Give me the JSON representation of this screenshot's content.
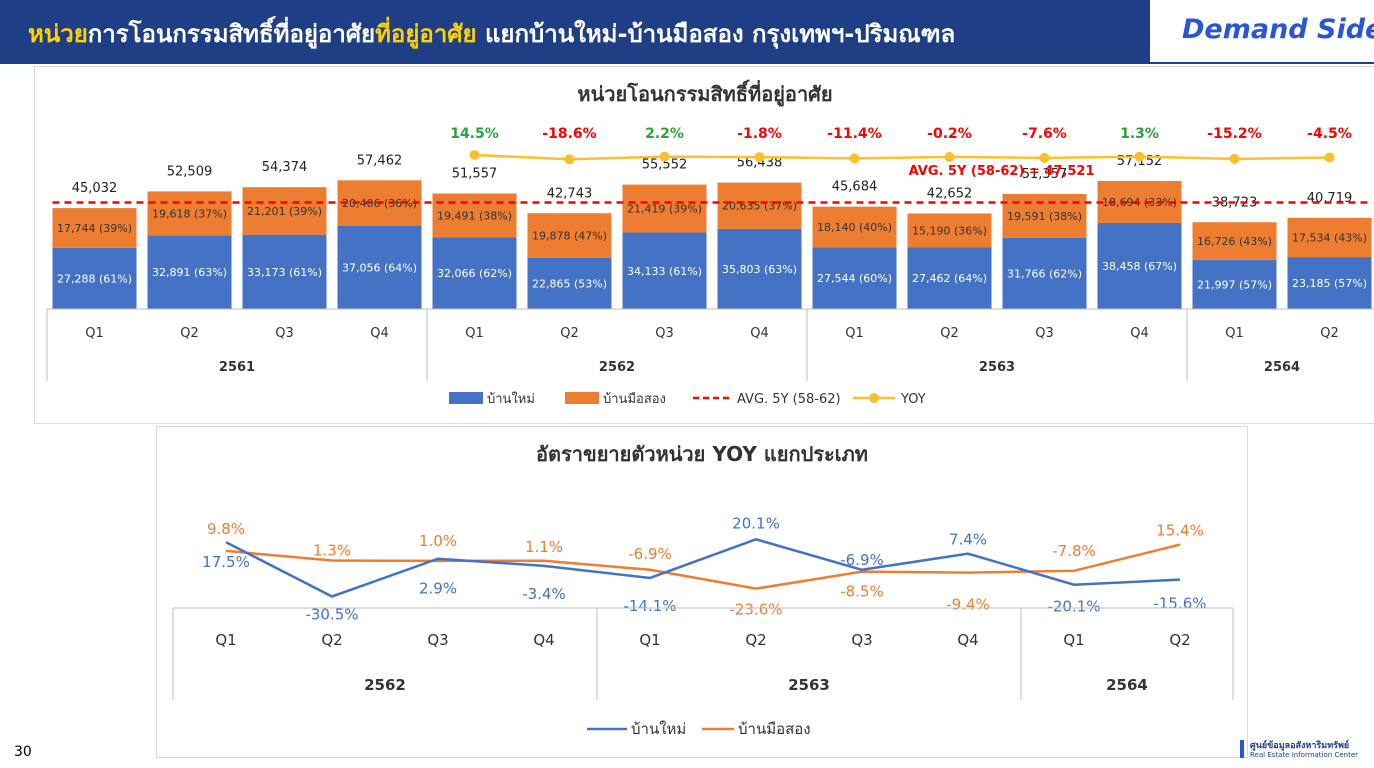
{
  "header": {
    "title_highlight": "หน่วย",
    "title_mid": "การโอนกรรมสิทธิ์ที่อยู่อาศัย",
    "title_highlight2": "ที่อยู่อาศัย",
    "title_rest": " แยกบ้านใหม่-บ้านมือสอง กรุงเทพฯ-ปริมณฑล",
    "side_label": "Demand Side"
  },
  "page_number": "30",
  "logo": {
    "line1": "ศูนย์ข้อมูลอสังหาริมทรัพย์",
    "line2": "Real Estate Information Center"
  },
  "colors": {
    "header_bg": "#1e3f86",
    "highlight": "#ffd200",
    "new_house": "#4472c4",
    "second_hand": "#ed7d31",
    "avg_line": "#ff0000",
    "yoy_line": "#fcc02e",
    "yoy_positive": "#2aa33b",
    "yoy_negative": "#ff0000"
  },
  "chart_data": [
    {
      "type": "bar",
      "stacked": true,
      "title": "หน่วยโอนกรรมสิทธิ์ที่อยู่อาศัย",
      "categories": [
        "Q1",
        "Q2",
        "Q3",
        "Q4",
        "Q1",
        "Q2",
        "Q3",
        "Q4",
        "Q1",
        "Q2",
        "Q3",
        "Q4",
        "Q1",
        "Q2"
      ],
      "year_groups": [
        {
          "label": "2561",
          "count": 4
        },
        {
          "label": "2562",
          "count": 4
        },
        {
          "label": "2563",
          "count": 4
        },
        {
          "label": "2564",
          "count": 2
        }
      ],
      "series": [
        {
          "name": "บ้านใหม่",
          "values": [
            27288,
            32891,
            33173,
            37056,
            32066,
            22865,
            34133,
            35803,
            27544,
            27462,
            31766,
            38458,
            21997,
            23185
          ],
          "labels": [
            "27,288 (61%)",
            "32,891 (63%)",
            "33,173 (61%)",
            "37,056 (64%)",
            "32,066 (62%)",
            "22,865 (53%)",
            "34,133 (61%)",
            "35,803 (63%)",
            "27,544 (60%)",
            "27,462 (64%)",
            "31,766 (62%)",
            "38,458 (67%)",
            "21,997 (57%)",
            "23,185 (57%)"
          ]
        },
        {
          "name": "บ้านมือสอง",
          "values": [
            17744,
            19618,
            21201,
            20406,
            19491,
            19878,
            21419,
            20635,
            18140,
            15190,
            19591,
            18694,
            16726,
            17534
          ],
          "labels": [
            "17,744 (39%)",
            "19,618 (37%)",
            "21,201 (39%)",
            "20,406 (36%)",
            "19,491 (38%)",
            "19,878 (47%)",
            "21,419 (39%)",
            "20,635 (37%)",
            "18,140 (40%)",
            "15,190 (36%)",
            "19,591 (38%)",
            "18,694 (33%)",
            "16,726 (43%)",
            "17,534 (43%)"
          ]
        }
      ],
      "totals": [
        "45,032",
        "52,509",
        "54,374",
        "57,462",
        "51,557",
        "42,743",
        "55,552",
        "56,438",
        "45,684",
        "42,652",
        "51,357",
        "57,152",
        "38,723",
        "40,719"
      ],
      "total_values": [
        45032,
        52509,
        54374,
        57462,
        51557,
        42743,
        55552,
        56438,
        45684,
        42652,
        51357,
        57152,
        38723,
        40719
      ],
      "avg_line": {
        "name": "AVG. 5Y (58-62)",
        "label": "AVG. 5Y (58-62) =  47,521",
        "value": 47521
      },
      "yoy": {
        "name": "YOY",
        "start_index": 4,
        "values": [
          14.5,
          -18.6,
          2.2,
          -1.8,
          -11.4,
          -0.2,
          -7.6,
          1.3,
          -15.2,
          -4.5
        ],
        "labels": [
          "14.5%",
          "-18.6%",
          "2.2%",
          "-1.8%",
          "-11.4%",
          "-0.2%",
          "-7.6%",
          "1.3%",
          "-15.2%",
          "-4.5%"
        ]
      },
      "legend": [
        "บ้านใหม่",
        "บ้านมือสอง",
        "AVG. 5Y (58-62)",
        "YOY"
      ],
      "legend_position": "bottom",
      "ylim": [
        0,
        66000
      ]
    },
    {
      "type": "line",
      "title": "อัตราขยายตัวหน่วย YOY แยกประเภท",
      "categories": [
        "Q1",
        "Q2",
        "Q3",
        "Q4",
        "Q1",
        "Q2",
        "Q3",
        "Q4",
        "Q1",
        "Q2"
      ],
      "year_groups": [
        {
          "label": "2562",
          "count": 4
        },
        {
          "label": "2563",
          "count": 4
        },
        {
          "label": "2564",
          "count": 2
        }
      ],
      "series": [
        {
          "name": "บ้านใหม่",
          "values": [
            17.5,
            -30.5,
            2.9,
            -3.4,
            -14.1,
            20.1,
            -6.9,
            7.4,
            -20.1,
            -15.6
          ],
          "labels": [
            "17.5%",
            "-30.5%",
            "2.9%",
            "-3.4%",
            "-14.1%",
            "20.1%",
            "-6.9%",
            "7.4%",
            "-20.1%",
            "-15.6%"
          ]
        },
        {
          "name": "บ้านมือสอง",
          "values": [
            9.8,
            1.3,
            1.0,
            1.1,
            -6.9,
            -23.6,
            -8.5,
            -9.4,
            -7.8,
            15.4
          ],
          "labels": [
            "9.8%",
            "1.3%",
            "1.0%",
            "1.1%",
            "-6.9%",
            "-23.6%",
            "-8.5%",
            "-9.4%",
            "-7.8%",
            "15.4%"
          ]
        }
      ],
      "legend_position": "bottom",
      "ylim": [
        -40,
        30
      ]
    }
  ]
}
